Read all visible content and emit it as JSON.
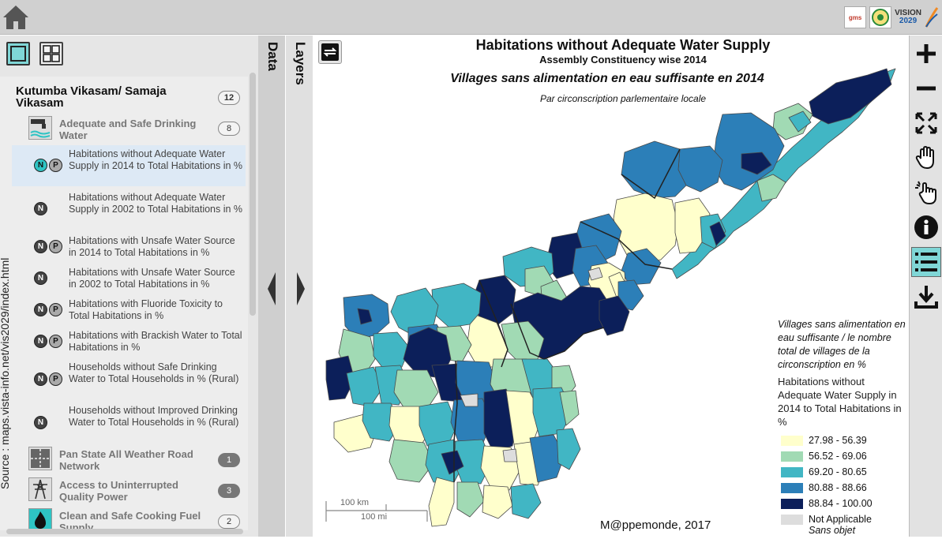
{
  "topbar": {
    "home_icon": "home-icon",
    "logos": [
      "gms-logo",
      "ap-emblem",
      "vision-2029-logo"
    ],
    "vision_text": "VISION",
    "vision_year": "2029",
    "gms_text": "gms"
  },
  "left_panel": {
    "view_toggle": [
      "single-view-icon",
      "grid-view-icon"
    ],
    "source_label": "Source : maps.vista-info.net/vis2029/index.html",
    "category": {
      "label": "Kutumba Vikasam/ Samaja Vikasam",
      "count": "12"
    },
    "subcategories": [
      {
        "label": "Adequate and Safe Drinking Water",
        "count": "8",
        "icon": "water-tap-icon"
      },
      {
        "label": "Pan State All Weather Road Network",
        "count": "1",
        "icon": "road-icon"
      },
      {
        "label": "Access to Uninterrupted Quality Power",
        "count": "3",
        "icon": "power-tower-icon"
      },
      {
        "label": "Clean and Safe Cooking Fuel Supply",
        "count": "2",
        "icon": "flame-icon"
      }
    ],
    "indicators": [
      {
        "label": "Habitations without Adequate Water Supply in 2014 to Total Habitations in %",
        "n": "N",
        "p": "P",
        "selected": true
      },
      {
        "label": "Habitations without Adequate Water Supply in 2002 to Total Habitations in %",
        "n": "N"
      },
      {
        "label": "Habitations with Unsafe Water Source in 2014 to Total Habitations in %",
        "n": "N",
        "p": "P"
      },
      {
        "label": "Habitations with Unsafe Water Source in 2002 to Total Habitations in %",
        "n": "N"
      },
      {
        "label": "Habitations with Fluoride Toxicity to Total Habitations in %",
        "n": "N",
        "p": "P"
      },
      {
        "label": "Habitations with Brackish Water to Total Habitations in %",
        "n": "N",
        "p": "P"
      },
      {
        "label": "Households without Safe Drinking Water to Total Households in % (Rural)",
        "n": "N",
        "p": "P"
      },
      {
        "label": "Households without Improved Drinking Water to Total Households in % (Rural)",
        "n": "N"
      }
    ]
  },
  "tabs": {
    "data_label": "Data",
    "layers_label": "Layers"
  },
  "map": {
    "title": "Habitations without Adequate Water Supply",
    "subtitle": "Assembly Constituency wise 2014",
    "title_fr": "Villages sans alimentation en eau suffisante en 2014",
    "subtitle_fr": "Par circonscription parlementaire locale",
    "scale_km": "100 km",
    "scale_mi": "100 mi",
    "credit": "M@ppemonde, 2017",
    "colors": {
      "c1": "#ffffcc",
      "c2": "#a1dab4",
      "c3": "#41b6c4",
      "c4": "#2c7fb8",
      "c5": "#0c1f5a",
      "na": "#dddddd"
    },
    "legend": {
      "title_fr": "Villages sans alimentation en eau suffisante / le nombre total de villages de la circonscription en %",
      "title_en": "Habitations without Adequate Water Supply in 2014 to Total Habitations in %",
      "classes": [
        {
          "label": "27.98 - 56.39",
          "color": "#ffffcc"
        },
        {
          "label": "56.52 - 69.06",
          "color": "#a1dab4"
        },
        {
          "label": "69.20 - 80.65",
          "color": "#41b6c4"
        },
        {
          "label": "80.88 - 88.66",
          "color": "#2c7fb8"
        },
        {
          "label": "88.84 - 100.00",
          "color": "#0c1f5a"
        }
      ],
      "na_label": "Not Applicable",
      "na_label_fr": "Sans objet",
      "na_color": "#dddddd"
    }
  },
  "tools": [
    "zoom-in-icon",
    "zoom-out-icon",
    "fit-extent-icon",
    "pan-hand-icon",
    "select-pointer-icon",
    "info-icon",
    "legend-list-icon",
    "download-icon"
  ]
}
